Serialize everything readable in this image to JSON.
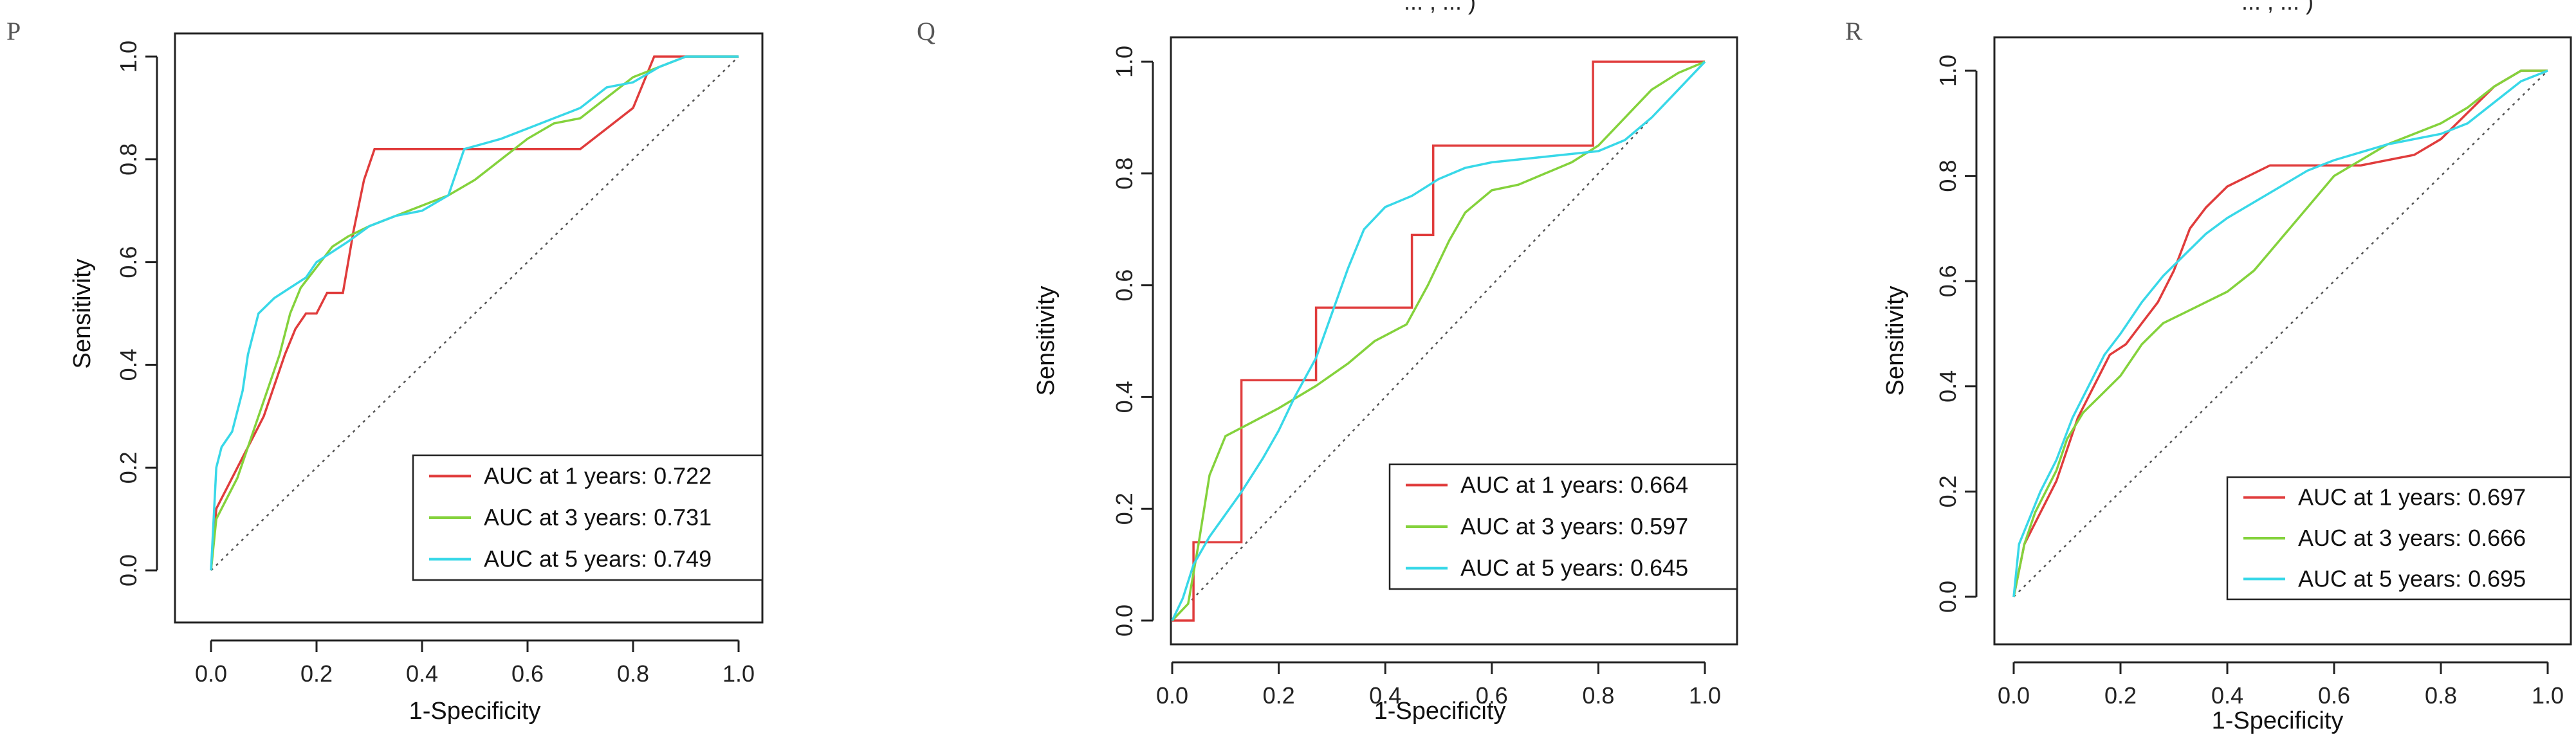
{
  "chart_data": [
    {
      "panel": "P",
      "type": "line",
      "xlabel": "1-Specificity",
      "ylabel": "Sensitivity",
      "xlim": [
        0,
        1
      ],
      "ylim": [
        0,
        1
      ],
      "x_ticks": [
        "0.0",
        "0.2",
        "0.4",
        "0.6",
        "0.8",
        "1.0"
      ],
      "y_ticks": [
        "0.0",
        "0.2",
        "0.4",
        "0.6",
        "0.8",
        "1.0"
      ],
      "reference_line": "diagonal",
      "legend_position": "bottom-right",
      "series": [
        {
          "name": "AUC at 1 years",
          "auc": "0.722",
          "label": "AUC at 1 years: 0.722",
          "color": "#e03c3c",
          "x": [
            0,
            0.01,
            0.02,
            0.04,
            0.06,
            0.08,
            0.1,
            0.12,
            0.14,
            0.16,
            0.18,
            0.2,
            0.22,
            0.25,
            0.27,
            0.29,
            0.31,
            0.33,
            0.4,
            0.5,
            0.6,
            0.7,
            0.75,
            0.8,
            0.84,
            0.88,
            1.0
          ],
          "y": [
            0,
            0.12,
            0.14,
            0.18,
            0.22,
            0.26,
            0.3,
            0.36,
            0.42,
            0.47,
            0.5,
            0.5,
            0.54,
            0.54,
            0.66,
            0.76,
            0.82,
            0.82,
            0.82,
            0.82,
            0.82,
            0.82,
            0.86,
            0.9,
            1.0,
            1.0,
            1.0
          ]
        },
        {
          "name": "AUC at 3 years",
          "auc": "0.731",
          "label": "AUC at 3 years: 0.731",
          "color": "#84d23c",
          "x": [
            0,
            0.01,
            0.03,
            0.05,
            0.07,
            0.09,
            0.11,
            0.13,
            0.15,
            0.17,
            0.2,
            0.23,
            0.26,
            0.3,
            0.35,
            0.4,
            0.45,
            0.5,
            0.55,
            0.6,
            0.65,
            0.7,
            0.75,
            0.8,
            0.85,
            0.9,
            1.0
          ],
          "y": [
            0,
            0.1,
            0.14,
            0.18,
            0.24,
            0.3,
            0.36,
            0.42,
            0.5,
            0.55,
            0.59,
            0.63,
            0.65,
            0.67,
            0.69,
            0.71,
            0.73,
            0.76,
            0.8,
            0.84,
            0.87,
            0.88,
            0.92,
            0.96,
            0.98,
            1.0,
            1.0
          ]
        },
        {
          "name": "AUC at 5 years",
          "auc": "0.749",
          "label": "AUC at 5 years: 0.749",
          "color": "#38d8e8",
          "x": [
            0,
            0.01,
            0.02,
            0.04,
            0.06,
            0.07,
            0.09,
            0.12,
            0.15,
            0.18,
            0.2,
            0.23,
            0.26,
            0.3,
            0.35,
            0.4,
            0.45,
            0.48,
            0.55,
            0.6,
            0.65,
            0.7,
            0.75,
            0.8,
            0.85,
            0.9,
            1.0
          ],
          "y": [
            0,
            0.2,
            0.24,
            0.27,
            0.35,
            0.42,
            0.5,
            0.53,
            0.55,
            0.57,
            0.6,
            0.62,
            0.64,
            0.67,
            0.69,
            0.7,
            0.73,
            0.82,
            0.84,
            0.86,
            0.88,
            0.9,
            0.94,
            0.95,
            0.98,
            1.0,
            1.0
          ]
        }
      ]
    },
    {
      "panel": "Q",
      "type": "line",
      "xlabel": "1-Specificity",
      "ylabel": "Sensitivity",
      "xlim": [
        0,
        1
      ],
      "ylim": [
        0,
        1
      ],
      "x_ticks": [
        "0.0",
        "0.2",
        "0.4",
        "0.6",
        "0.8",
        "1.0"
      ],
      "y_ticks": [
        "0.0",
        "0.2",
        "0.4",
        "0.6",
        "0.8",
        "1.0"
      ],
      "reference_line": "diagonal",
      "legend_position": "bottom-right",
      "series": [
        {
          "name": "AUC at 1 years",
          "auc": "0.664",
          "label": "AUC at 1 years: 0.664",
          "color": "#e03c3c",
          "x": [
            0,
            0.04,
            0.04,
            0.06,
            0.13,
            0.13,
            0.27,
            0.27,
            0.45,
            0.45,
            0.49,
            0.49,
            0.79,
            0.79,
            0.87,
            1.0
          ],
          "y": [
            0,
            0,
            0.14,
            0.14,
            0.14,
            0.43,
            0.43,
            0.56,
            0.56,
            0.69,
            0.69,
            0.85,
            0.85,
            1.0,
            1.0,
            1.0
          ]
        },
        {
          "name": "AUC at 3 years",
          "auc": "0.597",
          "label": "AUC at 3 years: 0.597",
          "color": "#84d23c",
          "x": [
            0,
            0.03,
            0.05,
            0.07,
            0.1,
            0.14,
            0.2,
            0.27,
            0.33,
            0.38,
            0.44,
            0.48,
            0.52,
            0.55,
            0.6,
            0.65,
            0.7,
            0.75,
            0.8,
            0.85,
            0.9,
            0.95,
            1.0
          ],
          "y": [
            0,
            0.03,
            0.14,
            0.26,
            0.33,
            0.35,
            0.38,
            0.42,
            0.46,
            0.5,
            0.53,
            0.6,
            0.68,
            0.73,
            0.77,
            0.78,
            0.8,
            0.82,
            0.85,
            0.9,
            0.95,
            0.98,
            1.0
          ]
        },
        {
          "name": "AUC at 5 years",
          "auc": "0.645",
          "label": "AUC at 5 years: 0.645",
          "color": "#38d8e8",
          "x": [
            0,
            0.02,
            0.04,
            0.07,
            0.1,
            0.13,
            0.17,
            0.2,
            0.23,
            0.27,
            0.3,
            0.33,
            0.36,
            0.4,
            0.45,
            0.5,
            0.55,
            0.6,
            0.7,
            0.8,
            0.85,
            0.9,
            0.95,
            1.0
          ],
          "y": [
            0,
            0.04,
            0.1,
            0.15,
            0.19,
            0.23,
            0.29,
            0.34,
            0.4,
            0.47,
            0.55,
            0.63,
            0.7,
            0.74,
            0.76,
            0.79,
            0.81,
            0.82,
            0.83,
            0.84,
            0.86,
            0.9,
            0.95,
            1.0
          ]
        }
      ]
    },
    {
      "panel": "R",
      "type": "line",
      "xlabel": "1-Specificity",
      "ylabel": "Sensitivity",
      "xlim": [
        0,
        1
      ],
      "ylim": [
        0,
        1
      ],
      "x_ticks": [
        "0.0",
        "0.2",
        "0.4",
        "0.6",
        "0.8",
        "1.0"
      ],
      "y_ticks": [
        "0.0",
        "0.2",
        "0.4",
        "0.6",
        "0.8",
        "1.0"
      ],
      "reference_line": "diagonal",
      "legend_position": "bottom-right",
      "series": [
        {
          "name": "AUC at 1 years",
          "auc": "0.697",
          "label": "AUC at 1 years: 0.697",
          "color": "#e03c3c",
          "x": [
            0,
            0.02,
            0.04,
            0.06,
            0.08,
            0.1,
            0.12,
            0.15,
            0.18,
            0.21,
            0.24,
            0.27,
            0.3,
            0.33,
            0.36,
            0.4,
            0.44,
            0.48,
            0.55,
            0.65,
            0.75,
            0.8,
            0.85,
            0.9,
            0.95,
            1.0
          ],
          "y": [
            0,
            0.1,
            0.14,
            0.18,
            0.22,
            0.28,
            0.34,
            0.4,
            0.46,
            0.48,
            0.52,
            0.56,
            0.62,
            0.7,
            0.74,
            0.78,
            0.8,
            0.82,
            0.82,
            0.82,
            0.84,
            0.87,
            0.92,
            0.97,
            1.0,
            1.0
          ]
        },
        {
          "name": "AUC at 3 years",
          "auc": "0.666",
          "label": "AUC at 3 years: 0.666",
          "color": "#84d23c",
          "x": [
            0,
            0.02,
            0.04,
            0.06,
            0.08,
            0.1,
            0.13,
            0.16,
            0.2,
            0.24,
            0.28,
            0.32,
            0.36,
            0.4,
            0.45,
            0.5,
            0.55,
            0.6,
            0.7,
            0.8,
            0.85,
            0.9,
            0.95,
            1.0
          ],
          "y": [
            0,
            0.1,
            0.16,
            0.2,
            0.24,
            0.3,
            0.35,
            0.38,
            0.42,
            0.48,
            0.52,
            0.54,
            0.56,
            0.58,
            0.62,
            0.68,
            0.74,
            0.8,
            0.86,
            0.9,
            0.93,
            0.97,
            1.0,
            1.0
          ]
        },
        {
          "name": "AUC at 5 years",
          "auc": "0.695",
          "label": "AUC at 5 years: 0.695",
          "color": "#38d8e8",
          "x": [
            0,
            0.01,
            0.03,
            0.05,
            0.08,
            0.11,
            0.14,
            0.17,
            0.2,
            0.24,
            0.28,
            0.32,
            0.36,
            0.4,
            0.45,
            0.5,
            0.55,
            0.6,
            0.7,
            0.8,
            0.85,
            0.9,
            0.95,
            1.0
          ],
          "y": [
            0,
            0.1,
            0.15,
            0.2,
            0.26,
            0.34,
            0.4,
            0.46,
            0.5,
            0.56,
            0.61,
            0.65,
            0.69,
            0.72,
            0.75,
            0.78,
            0.81,
            0.83,
            0.86,
            0.88,
            0.9,
            0.94,
            0.98,
            1.0
          ]
        }
      ]
    }
  ],
  "truncated_header_fragment": "... , ... )"
}
